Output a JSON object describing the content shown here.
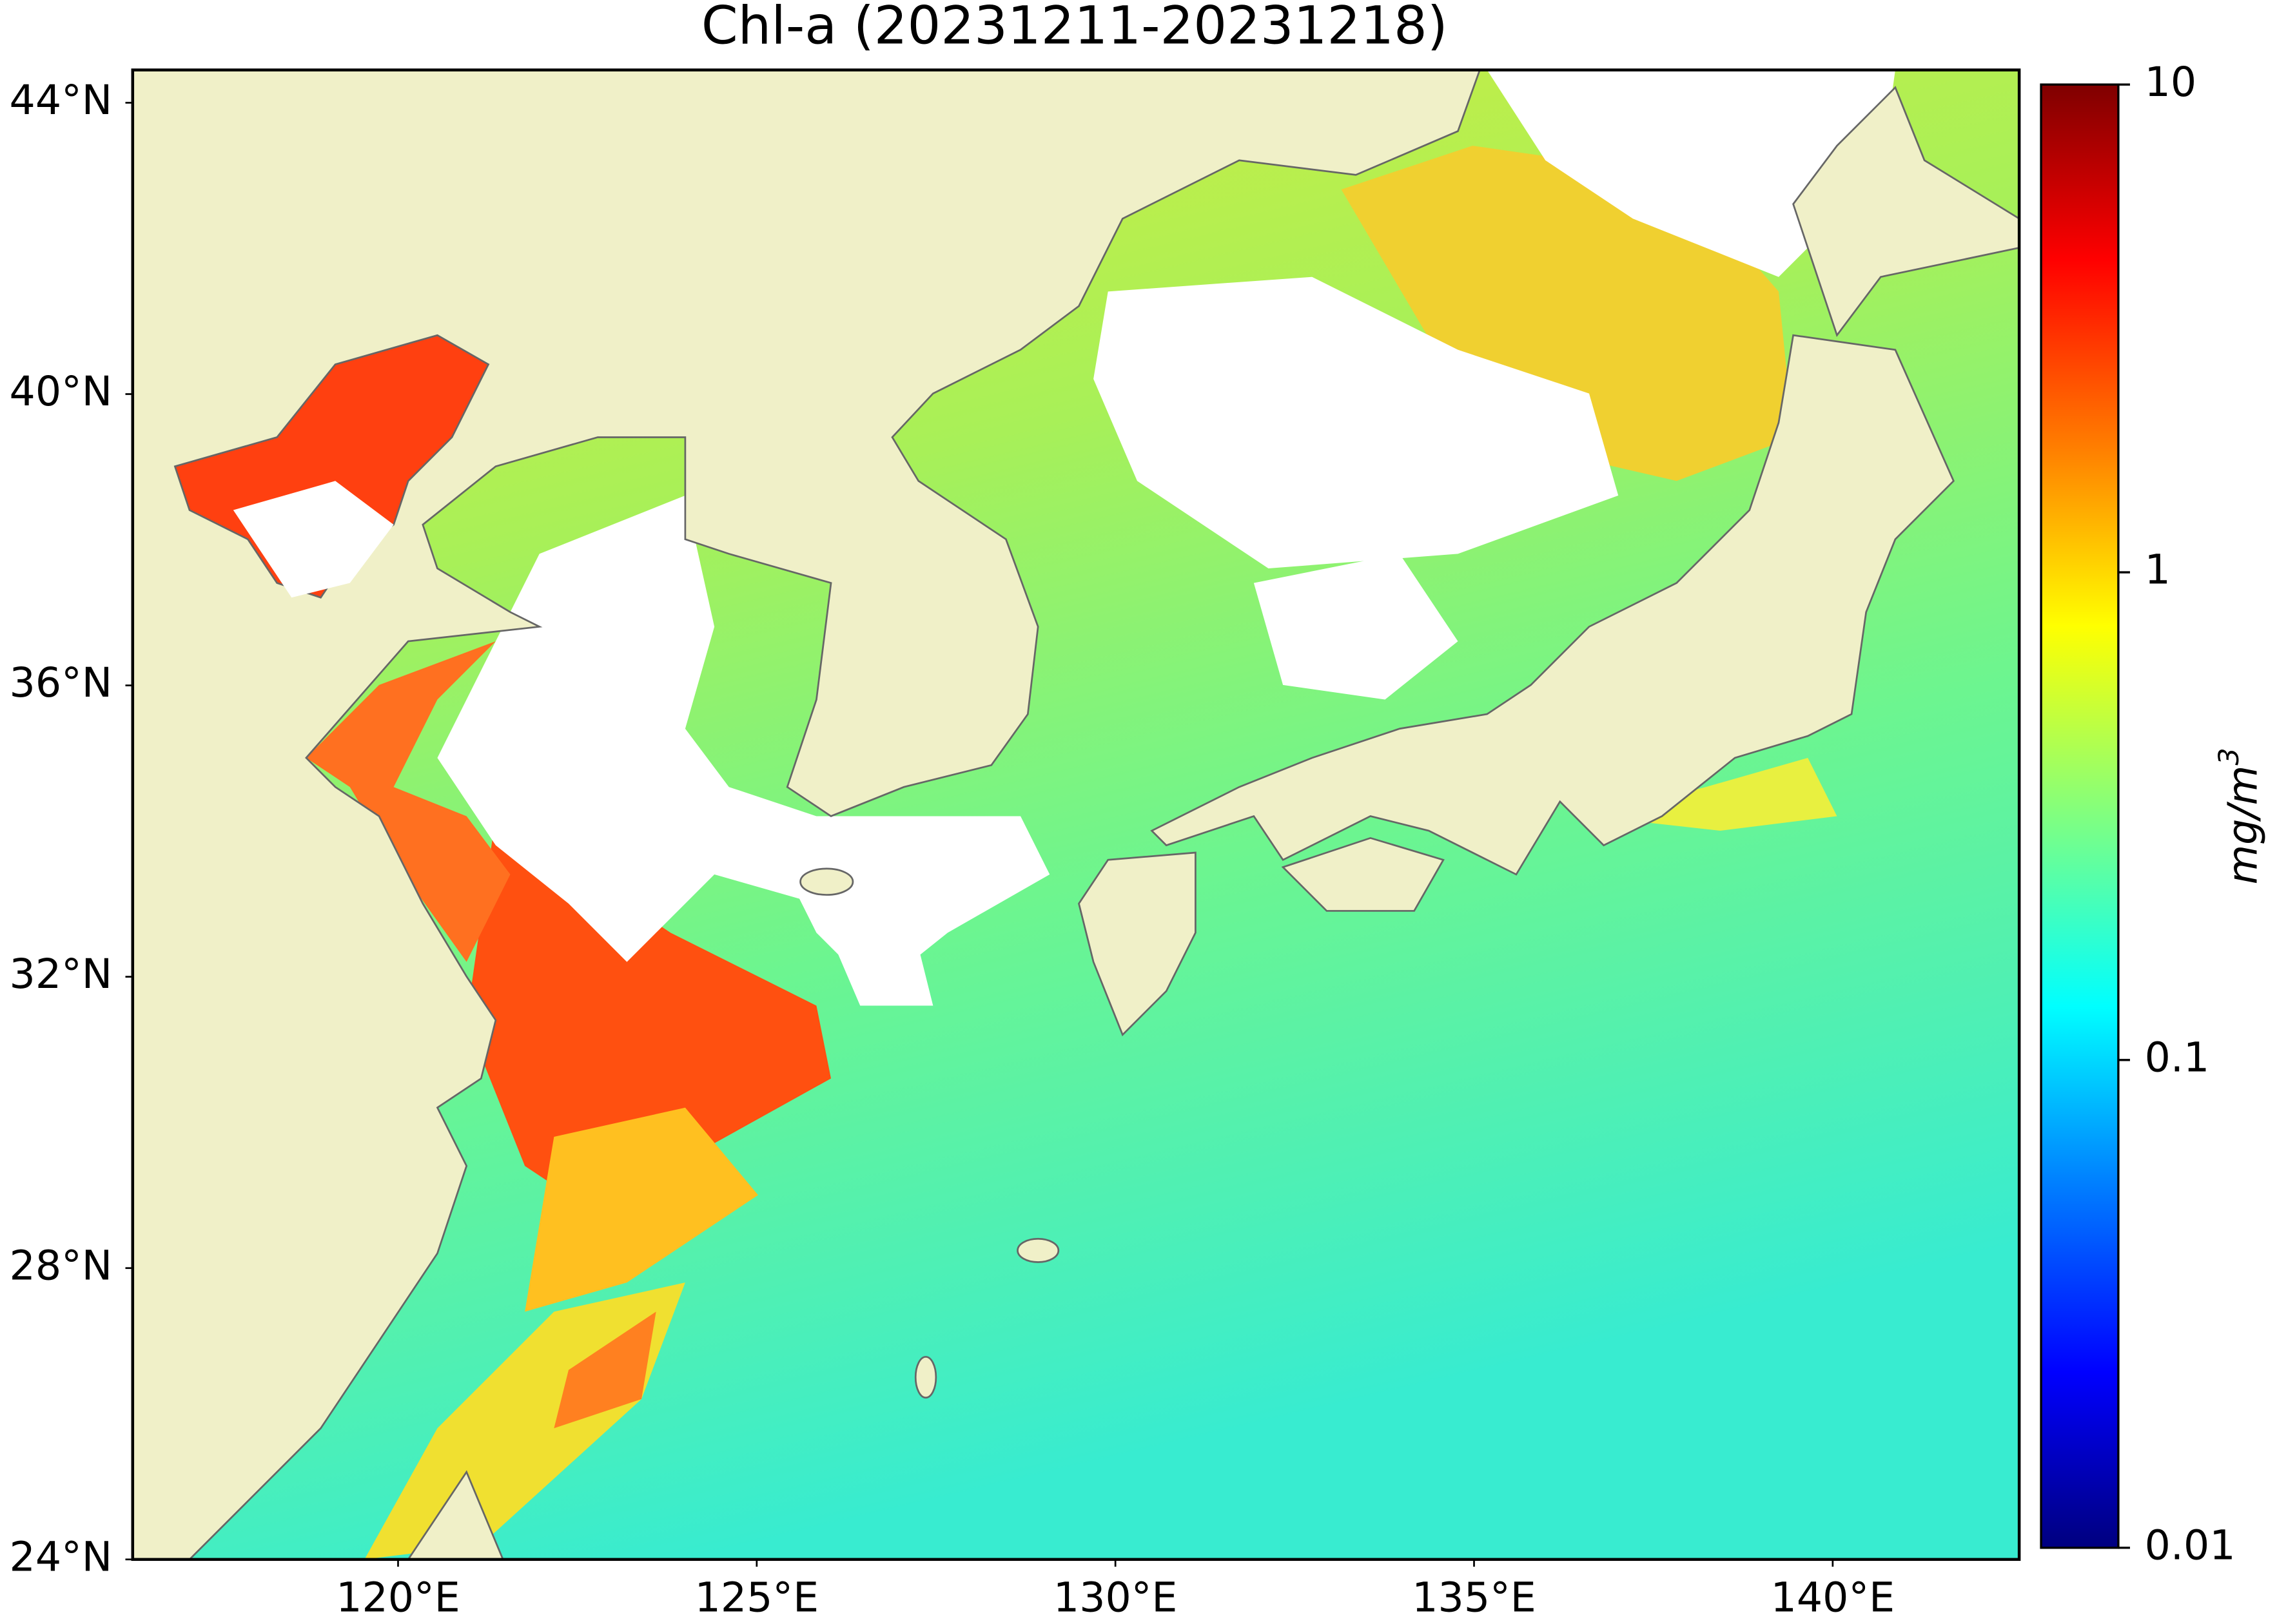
{
  "title": "Chl-a (20231211-20231218)",
  "map": {
    "xlim": [
      116.3,
      142.6
    ],
    "ylim": [
      24,
      44.45
    ],
    "xticks": [
      {
        "value": 120,
        "label": "120°E"
      },
      {
        "value": 125,
        "label": "125°E"
      },
      {
        "value": 130,
        "label": "130°E"
      },
      {
        "value": 135,
        "label": "135°E"
      },
      {
        "value": 140,
        "label": "140°E"
      }
    ],
    "yticks": [
      {
        "value": 24,
        "label": "24°N"
      },
      {
        "value": 28,
        "label": "28°N"
      },
      {
        "value": 32,
        "label": "32°N"
      },
      {
        "value": 36,
        "label": "36°N"
      },
      {
        "value": 40,
        "label": "40°N"
      },
      {
        "value": 44,
        "label": "44°N"
      }
    ]
  },
  "colorbar": {
    "label": "mg/m",
    "label_sup": "3",
    "scale": "log",
    "lim": [
      0.01,
      10
    ],
    "ticks": [
      0.01,
      0.1,
      1,
      10
    ]
  }
}
